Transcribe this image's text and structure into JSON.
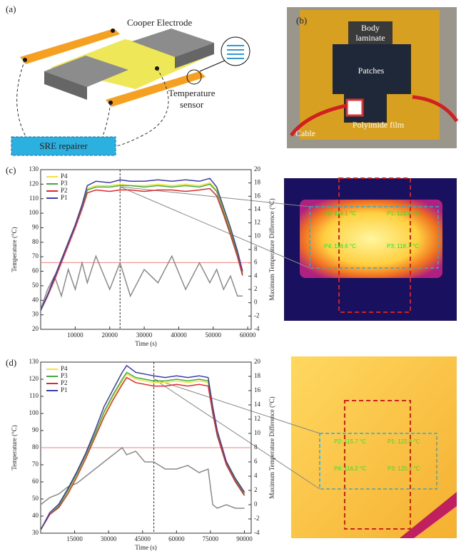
{
  "panels": {
    "a": "(a)",
    "b": "(b)",
    "c": "(c)",
    "d": "(d)"
  },
  "diagram_a": {
    "electrode": "Cooper Electrode",
    "sensor": [
      "Temperature",
      "sensor"
    ],
    "repairer": "SRE repairer"
  },
  "photo_b": {
    "laminate": [
      "Body",
      "laminate"
    ],
    "patches": "Patches",
    "film": "Polyimide film",
    "cable": "Cable"
  },
  "chart_data": [
    {
      "type": "line",
      "ylabel": "Temperature (°C)",
      "y2label": "Maximum Temperature Difference (°C)",
      "xlabel": "Time (s)",
      "xlim": [
        0,
        61000
      ],
      "xticks": [
        10000,
        20000,
        30000,
        40000,
        50000,
        60000
      ],
      "ylim": [
        20,
        130
      ],
      "yticks": [
        20,
        30,
        40,
        50,
        60,
        70,
        80,
        90,
        100,
        110,
        120,
        130
      ],
      "y2lim": [
        -4,
        20
      ],
      "y2ticks": [
        -4,
        -2,
        0,
        2,
        4,
        6,
        8,
        10,
        12,
        14,
        16,
        18,
        20
      ],
      "legend": "upper left",
      "reference_lines": {
        "y": 66,
        "x": 23000
      },
      "x": [
        0,
        2000,
        4000,
        6000,
        8000,
        10000,
        12000,
        13500,
        16000,
        20000,
        23000,
        26000,
        30000,
        34000,
        38000,
        42000,
        46000,
        49000,
        51000,
        53000,
        55000,
        57000,
        58500
      ],
      "series": [
        {
          "color": "#8a8a8a",
          "axis": "y2",
          "values": [
            -1,
            2,
            4,
            1,
            5,
            2,
            6,
            3,
            7,
            2,
            6,
            1,
            5,
            3,
            7,
            2,
            6,
            3,
            5,
            2,
            4,
            1,
            1
          ]
        },
        {
          "name": "P4",
          "color": "#f2e33a",
          "values": [
            33,
            43,
            55,
            67,
            79,
            91,
            104,
            117,
            119,
            119,
            120,
            119,
            119,
            120,
            119,
            120,
            119,
            121,
            116,
            102,
            88,
            73,
            59
          ]
        },
        {
          "name": "P3",
          "color": "#3faa3f",
          "values": [
            33,
            43,
            55,
            67,
            79,
            91,
            104,
            116,
            118,
            118,
            119,
            119,
            118,
            119,
            118,
            119,
            118,
            120,
            115,
            101,
            87,
            72,
            58
          ]
        },
        {
          "name": "P2",
          "color": "#e02828",
          "values": [
            33,
            43,
            54,
            66,
            78,
            90,
            103,
            114,
            116,
            115,
            116,
            116,
            115,
            116,
            116,
            115,
            116,
            117,
            112,
            99,
            85,
            70,
            57
          ]
        },
        {
          "name": "P1",
          "color": "#3c3ca8",
          "values": [
            33,
            44,
            56,
            68,
            80,
            92,
            106,
            119,
            122,
            121,
            123,
            122,
            122,
            123,
            122,
            123,
            122,
            124,
            118,
            104,
            90,
            74,
            60
          ]
        }
      ]
    },
    {
      "type": "line",
      "ylabel": "Temperature (°C)",
      "y2label": "Maximum Temperature Difference (°C)",
      "xlabel": "Time (s)",
      "xlim": [
        0,
        93000
      ],
      "xticks": [
        15000,
        30000,
        45000,
        60000,
        75000,
        90000
      ],
      "ylim": [
        30,
        130
      ],
      "yticks": [
        30,
        40,
        50,
        60,
        70,
        80,
        90,
        100,
        110,
        120,
        130
      ],
      "y2lim": [
        -4,
        20
      ],
      "y2ticks": [
        -4,
        -2,
        0,
        2,
        4,
        6,
        8,
        10,
        12,
        14,
        16,
        18,
        20
      ],
      "legend": "upper left",
      "reference_lines": {
        "y": 80,
        "x": 50000
      },
      "x": [
        0,
        4000,
        8000,
        12000,
        16000,
        20000,
        24000,
        28000,
        32000,
        36000,
        38000,
        42000,
        46000,
        50000,
        55000,
        60000,
        65000,
        70000,
        74000,
        76000,
        78000,
        82000,
        86000,
        90000
      ],
      "series": [
        {
          "color": "#8a8a8a",
          "axis": "y2",
          "values": [
            0,
            1,
            1.5,
            2.5,
            3,
            4,
            5,
            6,
            7,
            8,
            7,
            7.5,
            6,
            6,
            5,
            5,
            5.5,
            4.5,
            5,
            0,
            -0.5,
            0,
            -0.5,
            -0.5
          ]
        },
        {
          "name": "P4",
          "color": "#f2e33a",
          "values": [
            32,
            41,
            46,
            54,
            64,
            75,
            87,
            100,
            110,
            119,
            123,
            120,
            119,
            118,
            118,
            119,
            118,
            119,
            118,
            101,
            88,
            71,
            61,
            53
          ]
        },
        {
          "name": "P3",
          "color": "#3faa3f",
          "values": [
            32,
            41,
            46,
            55,
            65,
            76,
            88,
            101,
            111,
            120,
            124,
            121,
            120,
            119,
            119,
            120,
            119,
            120,
            119,
            102,
            88,
            71,
            61,
            53
          ]
        },
        {
          "name": "P2",
          "color": "#e02828",
          "values": [
            32,
            41,
            45,
            53,
            63,
            74,
            86,
            98,
            108,
            117,
            121,
            118,
            117,
            116,
            116,
            117,
            116,
            117,
            116,
            100,
            87,
            70,
            60,
            52
          ]
        },
        {
          "name": "P1",
          "color": "#3c3ca8",
          "values": [
            32,
            42,
            47,
            56,
            66,
            77,
            90,
            104,
            114,
            124,
            128,
            124,
            123,
            122,
            121,
            122,
            121,
            122,
            121,
            104,
            90,
            72,
            62,
            54
          ]
        }
      ]
    }
  ],
  "thermal_c": {
    "points": [
      "P2: 116.1 °C",
      "P1: 122.8 °C",
      "P4: 118.6 °C",
      "P3: 118.7 °C"
    ]
  },
  "thermal_d": {
    "points": [
      "P2: 115.7 °C",
      "P1: 122.8 °C",
      "P4: 116.2 °C",
      "P3: 120.4 °C"
    ]
  }
}
